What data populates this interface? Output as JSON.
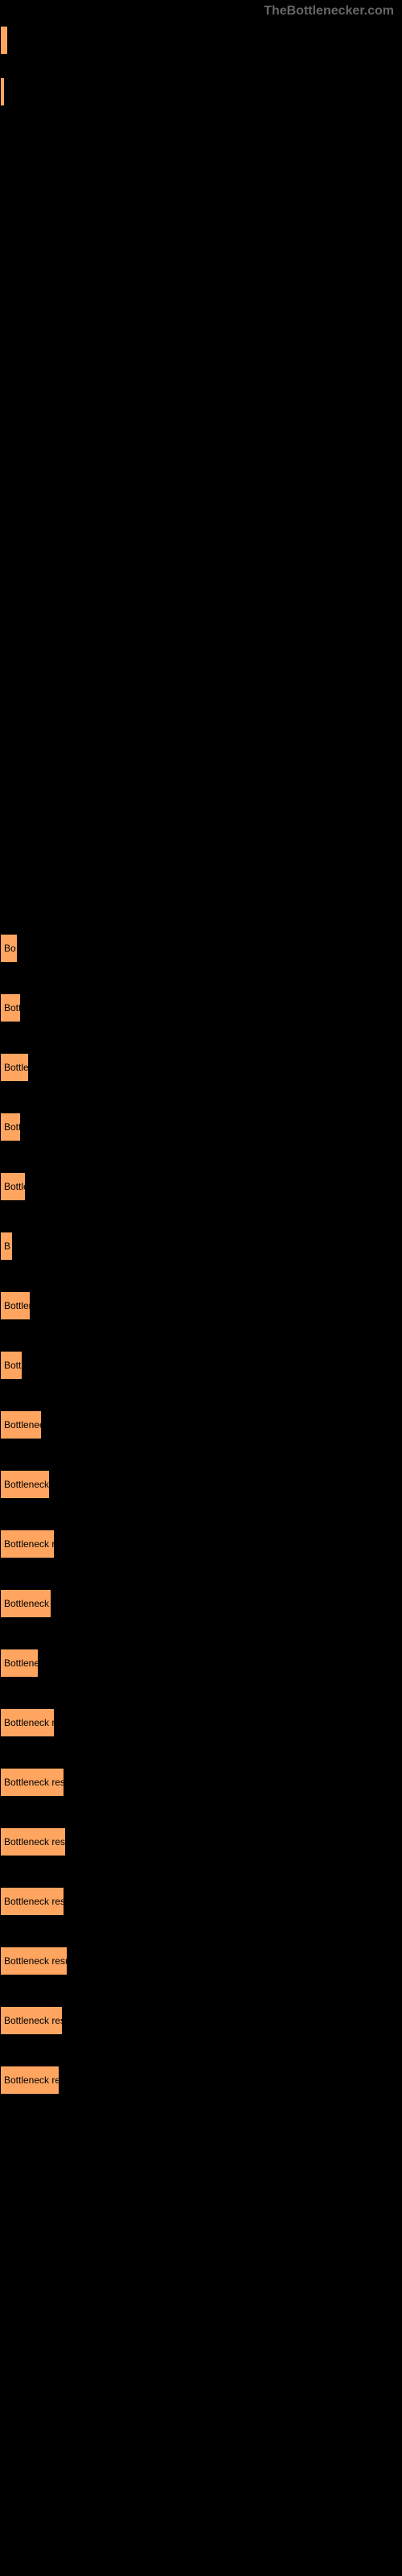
{
  "watermark": "TheBottlenecker.com",
  "barColor": "#ffa560",
  "backgroundColor": "#000000",
  "textColor": "#000000",
  "watermarkColor": "#666666",
  "barHeight": 36,
  "topBars": [
    {
      "width": 10,
      "label": ""
    },
    {
      "width": 6,
      "label": ""
    }
  ],
  "mainBars": [
    {
      "width": 22,
      "label": "Bo"
    },
    {
      "width": 26,
      "label": "Bott"
    },
    {
      "width": 36,
      "label": "Bottlen"
    },
    {
      "width": 26,
      "label": "Bott"
    },
    {
      "width": 32,
      "label": "Bottle"
    },
    {
      "width": 16,
      "label": "B"
    },
    {
      "width": 38,
      "label": "Bottlen"
    },
    {
      "width": 28,
      "label": "Bottl"
    },
    {
      "width": 52,
      "label": "Bottleneck r"
    },
    {
      "width": 62,
      "label": "Bottleneck re"
    },
    {
      "width": 68,
      "label": "Bottleneck resu"
    },
    {
      "width": 64,
      "label": "Bottleneck res"
    },
    {
      "width": 48,
      "label": "Bottleneck"
    },
    {
      "width": 68,
      "label": "Bottleneck resu"
    },
    {
      "width": 80,
      "label": "Bottleneck result"
    },
    {
      "width": 82,
      "label": "Bottleneck result"
    },
    {
      "width": 80,
      "label": "Bottleneck result"
    },
    {
      "width": 84,
      "label": "Bottleneck result"
    },
    {
      "width": 78,
      "label": "Bottleneck result"
    },
    {
      "width": 74,
      "label": "Bottleneck resul"
    }
  ]
}
